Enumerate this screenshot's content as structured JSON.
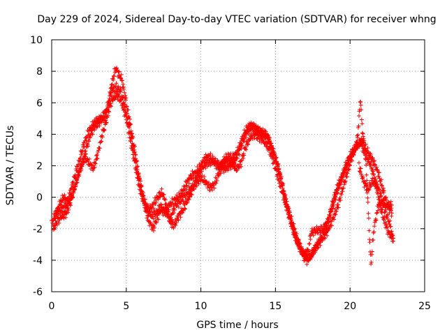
{
  "chart_data": {
    "type": "scatter",
    "title": "Day 229 of 2024, Sidereal Day-to-day VTEC variation (SDTVAR) for receiver whng",
    "xlabel": "GPS time / hours",
    "ylabel": "SDTVAR / TECUs",
    "xlim": [
      0,
      25
    ],
    "ylim": [
      -6,
      10
    ],
    "x_ticks": [
      0,
      5,
      10,
      15,
      20,
      25
    ],
    "y_ticks": [
      -6,
      -4,
      -2,
      0,
      2,
      4,
      6,
      8,
      10
    ],
    "grid": true,
    "marker": "+",
    "series": [
      {
        "name": "SDTVAR",
        "color": "#ff0000",
        "traces": [
          [
            [
              0,
              -1.6
            ],
            [
              0.3,
              -1.0
            ],
            [
              0.6,
              -0.8
            ],
            [
              1.0,
              -0.5
            ],
            [
              1.3,
              0.5
            ],
            [
              1.6,
              1.5
            ],
            [
              1.9,
              2.5
            ],
            [
              2.2,
              3.5
            ],
            [
              2.5,
              4.2
            ],
            [
              2.9,
              4.8
            ],
            [
              3.3,
              5.0
            ],
            [
              3.7,
              5.5
            ],
            [
              3.9,
              6.5
            ],
            [
              4.1,
              7.5
            ],
            [
              4.3,
              8.2
            ],
            [
              4.5,
              7.8
            ],
            [
              4.7,
              7.5
            ],
            [
              4.9,
              6.5
            ],
            [
              5.1,
              5.5
            ],
            [
              5.3,
              4.5
            ],
            [
              5.6,
              2.8
            ],
            [
              5.9,
              1.0
            ],
            [
              6.2,
              -0.5
            ],
            [
              6.5,
              -1.5
            ],
            [
              6.8,
              -2.0
            ],
            [
              7.0,
              -1.5
            ],
            [
              7.3,
              -0.8
            ],
            [
              7.7,
              -1.0
            ],
            [
              8.0,
              -1.3
            ],
            [
              8.3,
              -0.5
            ],
            [
              8.6,
              -0.3
            ],
            [
              9.0,
              0.2
            ],
            [
              9.3,
              0.5
            ],
            [
              9.6,
              1.0
            ],
            [
              9.9,
              1.6
            ],
            [
              10.2,
              2.0
            ],
            [
              10.5,
              2.2
            ],
            [
              10.9,
              2.3
            ],
            [
              11.3,
              2.0
            ],
            [
              11.6,
              1.8
            ],
            [
              12.0,
              2.0
            ],
            [
              12.3,
              2.4
            ],
            [
              12.6,
              3.0
            ],
            [
              12.9,
              3.8
            ],
            [
              13.2,
              4.3
            ],
            [
              13.5,
              4.5
            ],
            [
              13.8,
              4.3
            ],
            [
              14.1,
              4.1
            ],
            [
              14.4,
              4.0
            ],
            [
              14.7,
              3.3
            ],
            [
              15.0,
              2.5
            ],
            [
              15.3,
              1.5
            ],
            [
              15.6,
              0.2
            ],
            [
              15.9,
              -1.0
            ],
            [
              16.2,
              -2.0
            ],
            [
              16.5,
              -2.8
            ],
            [
              16.8,
              -3.5
            ],
            [
              17.1,
              -4.0
            ],
            [
              17.4,
              -3.7
            ],
            [
              17.7,
              -3.2
            ],
            [
              18.0,
              -2.8
            ],
            [
              18.4,
              -2.3
            ],
            [
              18.8,
              -1.5
            ],
            [
              19.2,
              -0.5
            ],
            [
              19.5,
              0.5
            ],
            [
              19.8,
              1.5
            ],
            [
              20.1,
              2.5
            ],
            [
              20.4,
              3.2
            ],
            [
              20.7,
              3.5
            ],
            [
              20.9,
              3.0
            ],
            [
              21.1,
              2.5
            ],
            [
              21.4,
              2.0
            ],
            [
              21.7,
              1.0
            ],
            [
              22.0,
              -0.5
            ],
            [
              22.3,
              -1.5
            ],
            [
              22.6,
              -2.3
            ],
            [
              22.9,
              -2.6
            ]
          ],
          [
            [
              0.1,
              -2.0
            ],
            [
              0.4,
              -1.5
            ],
            [
              0.7,
              -1.2
            ],
            [
              1.0,
              -1.0
            ],
            [
              1.3,
              -0.2
            ],
            [
              1.6,
              0.8
            ],
            [
              1.9,
              1.8
            ],
            [
              2.2,
              2.5
            ],
            [
              2.5,
              2.2
            ],
            [
              2.8,
              1.8
            ],
            [
              3.1,
              2.8
            ],
            [
              3.4,
              4.0
            ],
            [
              3.7,
              5.0
            ],
            [
              3.9,
              5.8
            ],
            [
              4.1,
              6.3
            ],
            [
              4.4,
              6.5
            ],
            [
              4.7,
              6.0
            ],
            [
              5.0,
              5.0
            ],
            [
              5.3,
              3.5
            ],
            [
              5.6,
              2.0
            ],
            [
              5.9,
              0.5
            ],
            [
              6.2,
              -0.3
            ],
            [
              6.5,
              -0.8
            ],
            [
              6.8,
              -0.5
            ],
            [
              7.1,
              0.0
            ],
            [
              7.4,
              0.3
            ],
            [
              7.6,
              -0.2
            ],
            [
              7.9,
              -1.5
            ],
            [
              8.2,
              -1.8
            ],
            [
              8.5,
              -1.2
            ],
            [
              8.8,
              -0.8
            ],
            [
              9.1,
              -0.2
            ],
            [
              9.4,
              0.4
            ],
            [
              9.7,
              0.9
            ],
            [
              10.0,
              1.2
            ],
            [
              10.3,
              1.0
            ],
            [
              10.6,
              0.6
            ],
            [
              10.9,
              0.8
            ],
            [
              11.2,
              1.5
            ],
            [
              11.5,
              2.0
            ],
            [
              11.8,
              2.3
            ],
            [
              12.1,
              2.1
            ],
            [
              12.4,
              1.8
            ],
            [
              12.7,
              2.2
            ],
            [
              13.0,
              3.2
            ],
            [
              13.3,
              3.8
            ],
            [
              13.6,
              4.0
            ],
            [
              13.9,
              3.8
            ],
            [
              14.2,
              3.6
            ],
            [
              14.5,
              3.2
            ],
            [
              14.8,
              2.5
            ],
            [
              15.1,
              1.5
            ],
            [
              15.4,
              0.5
            ],
            [
              15.7,
              -0.5
            ],
            [
              16.0,
              -1.5
            ],
            [
              16.3,
              -2.5
            ],
            [
              16.6,
              -3.2
            ],
            [
              16.9,
              -3.6
            ],
            [
              17.2,
              -3.4
            ],
            [
              17.4,
              -2.2
            ],
            [
              17.8,
              -2.1
            ],
            [
              18.2,
              -2.0
            ],
            [
              18.5,
              -1.6
            ],
            [
              18.8,
              -0.5
            ],
            [
              19.1,
              0.5
            ],
            [
              19.4,
              1.2
            ],
            [
              19.7,
              2.0
            ],
            [
              20.0,
              2.6
            ],
            [
              20.3,
              3.0
            ],
            [
              20.5,
              3.8
            ],
            [
              20.6,
              5.0
            ],
            [
              20.7,
              6.3
            ],
            [
              20.8,
              4.5
            ],
            [
              21.0,
              3.0
            ],
            [
              21.1,
              1.5
            ],
            [
              21.2,
              -0.5
            ],
            [
              21.3,
              -2.5
            ],
            [
              21.4,
              -4.3
            ],
            [
              21.6,
              -2.0
            ],
            [
              21.9,
              -0.5
            ],
            [
              22.2,
              -0.3
            ],
            [
              22.5,
              -0.5
            ],
            [
              22.8,
              -0.5
            ]
          ],
          [
            [
              0.2,
              -1.3
            ],
            [
              0.5,
              -0.5
            ],
            [
              0.8,
              0.0
            ],
            [
              1.1,
              -0.3
            ],
            [
              1.4,
              0.2
            ],
            [
              1.7,
              1.2
            ],
            [
              2.0,
              2.0
            ],
            [
              2.3,
              3.0
            ],
            [
              2.6,
              4.0
            ],
            [
              2.9,
              4.5
            ],
            [
              3.2,
              4.8
            ],
            [
              3.5,
              5.0
            ],
            [
              3.8,
              5.8
            ],
            [
              4.0,
              6.8
            ],
            [
              4.3,
              7.0
            ],
            [
              4.6,
              6.8
            ],
            [
              4.9,
              5.8
            ],
            [
              5.2,
              4.5
            ],
            [
              5.5,
              3.0
            ],
            [
              5.8,
              1.5
            ],
            [
              6.1,
              0.2
            ],
            [
              6.4,
              -0.8
            ],
            [
              6.7,
              -1.2
            ],
            [
              7.0,
              -1.0
            ],
            [
              7.3,
              -0.6
            ],
            [
              7.6,
              -0.9
            ],
            [
              7.9,
              -0.5
            ],
            [
              8.2,
              -0.2
            ],
            [
              8.5,
              0.0
            ],
            [
              8.8,
              0.4
            ],
            [
              9.1,
              1.0
            ],
            [
              9.4,
              1.4
            ],
            [
              9.7,
              1.6
            ],
            [
              10.0,
              2.0
            ],
            [
              10.3,
              2.5
            ],
            [
              10.6,
              2.6
            ],
            [
              10.9,
              2.2
            ],
            [
              11.2,
              1.9
            ],
            [
              11.5,
              2.3
            ],
            [
              11.8,
              2.6
            ],
            [
              12.1,
              2.5
            ],
            [
              12.4,
              2.8
            ],
            [
              12.7,
              3.5
            ],
            [
              13.0,
              4.2
            ],
            [
              13.3,
              4.6
            ],
            [
              13.6,
              4.4
            ],
            [
              13.9,
              4.2
            ],
            [
              14.2,
              4.0
            ],
            [
              14.5,
              3.8
            ],
            [
              14.8,
              3.0
            ],
            [
              15.1,
              2.2
            ],
            [
              15.4,
              1.0
            ],
            [
              15.7,
              -0.3
            ],
            [
              16.0,
              -1.2
            ],
            [
              16.3,
              -2.2
            ],
            [
              16.6,
              -3.0
            ],
            [
              16.9,
              -3.8
            ],
            [
              17.2,
              -3.9
            ],
            [
              17.5,
              -3.5
            ],
            [
              17.8,
              -3.0
            ],
            [
              18.1,
              -2.5
            ],
            [
              18.4,
              -1.8
            ],
            [
              18.7,
              -1.0
            ],
            [
              19.0,
              0.0
            ],
            [
              19.3,
              0.8
            ],
            [
              19.6,
              1.6
            ],
            [
              19.9,
              2.3
            ],
            [
              20.2,
              2.9
            ],
            [
              20.5,
              3.3
            ],
            [
              20.8,
              3.6
            ],
            [
              21.0,
              3.2
            ],
            [
              21.3,
              2.7
            ],
            [
              21.6,
              2.2
            ],
            [
              21.9,
              1.5
            ],
            [
              22.2,
              0.5
            ],
            [
              22.5,
              -0.5
            ],
            [
              22.8,
              -1.0
            ]
          ],
          [
            [
              20.6,
              2.0
            ],
            [
              20.9,
              1.0
            ],
            [
              21.2,
              0.5
            ],
            [
              21.5,
              1.0
            ],
            [
              21.8,
              0.8
            ],
            [
              22.1,
              0.0
            ],
            [
              22.4,
              -1.0
            ],
            [
              22.7,
              -1.8
            ],
            [
              22.9,
              -2.8
            ]
          ]
        ]
      }
    ]
  }
}
